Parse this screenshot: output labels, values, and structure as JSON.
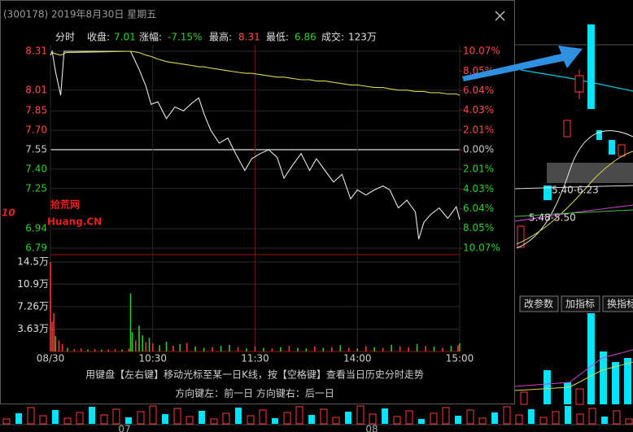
{
  "window": {
    "title": "(300178) 2019年8月30日 星期五"
  },
  "info": {
    "mode": "分时",
    "close_label": "收盘:",
    "close": "7.01",
    "change_label": "涨幅:",
    "change": "-7.15%",
    "high_label": "最高:",
    "high": "8.31",
    "low_label": "最低:",
    "low": "6.86",
    "volume_label": "成交:",
    "volume": "123万"
  },
  "chart_data": [
    {
      "type": "line",
      "x": [
        0,
        1,
        3,
        6,
        8,
        9,
        47,
        52,
        56,
        59,
        63,
        68,
        73,
        78,
        83,
        87,
        90,
        94,
        99,
        104,
        109,
        114,
        118,
        123,
        128,
        133,
        137,
        142,
        147,
        152,
        156,
        161,
        166,
        171,
        176,
        180,
        185,
        190,
        195,
        199,
        204,
        209,
        214,
        216,
        219,
        223,
        228,
        233,
        238,
        240
      ],
      "series": [
        {
          "color": "#e8e8e8",
          "values": [
            8.28,
            8.31,
            8.15,
            7.97,
            8.31,
            8.31,
            8.31,
            8.17,
            8.04,
            7.9,
            7.92,
            7.79,
            7.88,
            7.85,
            7.91,
            7.95,
            7.83,
            7.7,
            7.6,
            7.64,
            7.51,
            7.39,
            7.48,
            7.52,
            7.55,
            7.49,
            7.33,
            7.43,
            7.52,
            7.39,
            7.48,
            7.39,
            7.3,
            7.36,
            7.17,
            7.24,
            7.2,
            7.24,
            7.27,
            7.24,
            7.1,
            7.16,
            7.07,
            6.86,
            6.99,
            7.05,
            7.1,
            7.02,
            7.11,
            7.01
          ]
        },
        {
          "color": "#d8d84a",
          "values": [
            8.28,
            8.3,
            8.29,
            8.28,
            8.29,
            8.3,
            8.31,
            8.3,
            8.28,
            8.27,
            8.25,
            8.23,
            8.22,
            8.21,
            8.2,
            8.19,
            8.19,
            8.18,
            8.17,
            8.16,
            8.15,
            8.14,
            8.14,
            8.13,
            8.12,
            8.11,
            8.11,
            8.1,
            8.09,
            8.09,
            8.08,
            8.08,
            8.07,
            8.06,
            8.05,
            8.05,
            8.04,
            8.03,
            8.03,
            8.02,
            8.01,
            8.01,
            8.0,
            8.0,
            8.0,
            7.99,
            7.99,
            7.98,
            7.98,
            7.97
          ]
        }
      ],
      "xlim": [
        0,
        240
      ],
      "ylim": [
        6.79,
        8.31
      ],
      "yticks": [
        8.31,
        8.01,
        7.85,
        {
          "value": 7.7,
          "label": "7.70"
        },
        7.55,
        {
          "value": 7.4,
          "label": "7.40"
        },
        7.25,
        6.94,
        6.79
      ],
      "y2lim": [
        -10.07,
        10.07
      ],
      "y2ticks": [
        {
          "value": 10.07,
          "label": "10.07%"
        },
        {
          "value": 8.05,
          "label": "8.05%"
        },
        {
          "value": 6.04,
          "label": "6.04%"
        },
        {
          "value": 4.03,
          "label": "4.03%"
        },
        {
          "value": 2.01,
          "label": "2.01%"
        },
        {
          "value": 0,
          "label": "0.00%"
        },
        {
          "value": -2.01,
          "label": "2.01%"
        },
        {
          "value": -4.03,
          "label": "4.03%"
        },
        {
          "value": -6.04,
          "label": "6.04%"
        },
        {
          "value": -8.05,
          "label": "8.05%"
        },
        {
          "value": -10.07,
          "label": "10.07%"
        }
      ],
      "up_color": "#ff4a4a",
      "down_color": "#2fd02f",
      "flat_color": "#c8c8c8",
      "grid": true
    },
    {
      "type": "bar",
      "x": [
        0,
        1,
        2,
        3,
        5,
        7,
        10,
        14,
        18,
        22,
        26,
        30,
        34,
        38,
        42,
        46,
        47,
        48,
        50,
        52,
        54,
        56,
        58,
        60,
        64,
        68,
        72,
        76,
        80,
        85,
        90,
        95,
        100,
        105,
        110,
        115,
        120,
        125,
        130,
        135,
        140,
        145,
        150,
        155,
        160,
        165,
        170,
        175,
        180,
        185,
        190,
        195,
        200,
        205,
        210,
        215,
        220,
        225,
        230,
        235,
        239,
        240
      ],
      "values": [
        14.5,
        4.8,
        6.2,
        2.5,
        1.8,
        1.2,
        0.6,
        0.4,
        0.5,
        0.3,
        0.4,
        0.3,
        0.3,
        0.4,
        0.3,
        0.5,
        9.4,
        3.1,
        1.8,
        4.2,
        2.6,
        1.5,
        2.2,
        1.3,
        1.0,
        1.6,
        0.9,
        1.2,
        1.4,
        0.8,
        0.6,
        0.7,
        0.9,
        1.1,
        0.7,
        0.5,
        0.8,
        0.6,
        0.5,
        0.7,
        0.9,
        0.6,
        0.5,
        0.8,
        0.6,
        0.7,
        1.0,
        0.6,
        0.5,
        0.9,
        0.7,
        0.6,
        1.1,
        0.8,
        0.7,
        1.2,
        0.9,
        0.8,
        0.6,
        0.9,
        1.0,
        1.3
      ],
      "bar_colors": [
        "#e83a3a",
        "#e83a3a",
        "#e83a3a",
        "#2fc92f",
        "#e83a3a",
        "#e83a3a",
        "#2fc92f",
        "#e83a3a",
        "#e83a3a",
        "#2fc92f",
        "#e83a3a",
        "#2fc92f",
        "#e83a3a",
        "#e83a3a",
        "#2fc92f",
        "#e83a3a",
        "#2fc92f",
        "#2fc92f",
        "#e83a3a",
        "#2fc92f",
        "#2fc92f",
        "#e83a3a",
        "#2fc92f",
        "#e83a3a",
        "#2fc92f",
        "#2fc92f",
        "#e83a3a",
        "#2fc92f",
        "#e83a3a",
        "#2fc92f",
        "#2fc92f",
        "#e83a3a",
        "#2fc92f",
        "#2fc92f",
        "#e83a3a",
        "#2fc92f",
        "#e83a3a",
        "#2fc92f",
        "#e83a3a",
        "#2fc92f",
        "#e83a3a",
        "#2fc92f",
        "#2fc92f",
        "#e83a3a",
        "#2fc92f",
        "#e83a3a",
        "#2fc92f",
        "#e83a3a",
        "#2fc92f",
        "#e83a3a",
        "#2fc92f",
        "#e83a3a",
        "#2fc92f",
        "#e83a3a",
        "#e83a3a",
        "#2fc92f",
        "#e83a3a",
        "#2fc92f",
        "#e83a3a",
        "#2fc92f",
        "#e83a3a",
        "#2fc92f"
      ],
      "xlim": [
        0,
        240
      ],
      "xticks": [
        {
          "value": 0,
          "label": "08/30"
        },
        {
          "value": 60,
          "label": "10:30"
        },
        {
          "value": 120,
          "label": "11:30"
        },
        {
          "value": 180,
          "label": "14:00"
        },
        {
          "value": 240,
          "label": "15:00"
        }
      ],
      "ylim": [
        0,
        14.5
      ],
      "yticks": [
        {
          "value": 14.5,
          "label": "14.5万"
        },
        {
          "value": 10.9,
          "label": "10.9万"
        },
        {
          "value": 7.26,
          "label": "7.26万"
        },
        {
          "value": 3.63,
          "label": "3.63万"
        }
      ]
    }
  ],
  "hint": {
    "line1": "用键盘【左右键】移动光标至某一日K线，按【空格键】查看当日历史分时走势",
    "line2": "方向键左：前一日    方向键右：后一日"
  },
  "watermark": {
    "logo": "10",
    "name": "拾荒网",
    "domain": "Huang.CN"
  },
  "background": {
    "labels": [
      "5.40-6.23",
      "5.48-5.50"
    ],
    "buttons": [
      "改参数",
      "加指标",
      "换指标"
    ],
    "months": [
      "07",
      "08"
    ]
  }
}
